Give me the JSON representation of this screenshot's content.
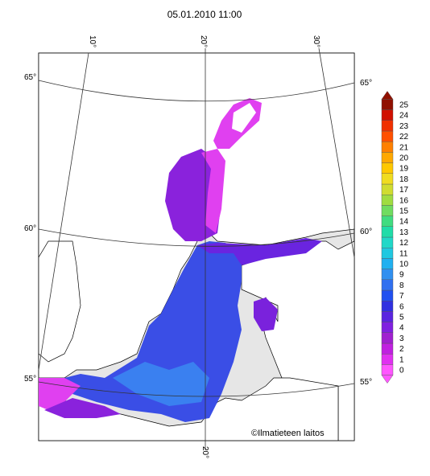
{
  "title": "05.01.2010 11:00",
  "grid_labels": {
    "lat": [
      "65°",
      "60°",
      "55°"
    ],
    "lon": [
      "10°",
      "20°",
      "30°"
    ]
  },
  "colorbar": {
    "levels": [
      0,
      1,
      2,
      3,
      4,
      5,
      6,
      7,
      8,
      9,
      10,
      11,
      12,
      13,
      14,
      15,
      16,
      17,
      18,
      19,
      20,
      21,
      22,
      23,
      24,
      25
    ],
    "colors": [
      "#ff55ff",
      "#e030f0",
      "#c020e0",
      "#a020d0",
      "#8020e0",
      "#5a24e0",
      "#3030e0",
      "#2050f0",
      "#3070f0",
      "#3090f0",
      "#20b0f0",
      "#20c8e0",
      "#20d8c8",
      "#20dca8",
      "#40dc80",
      "#70dc60",
      "#a0dc40",
      "#d0dc30",
      "#f0dc20",
      "#ffc800",
      "#ffa800",
      "#ff8000",
      "#ff5000",
      "#f03000",
      "#d01000",
      "#901000"
    ]
  },
  "credit": "©Ilmatieteen laitos"
}
